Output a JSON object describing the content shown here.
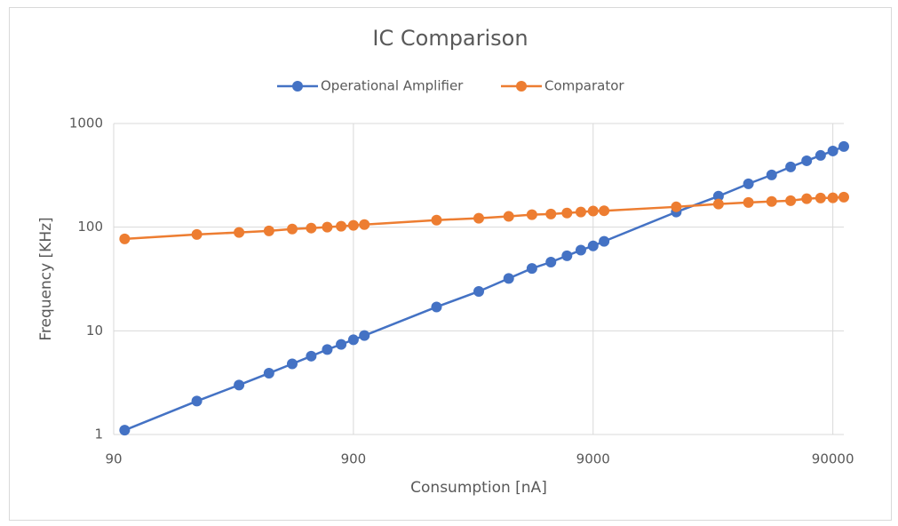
{
  "chart_data": {
    "type": "line",
    "title": "IC Comparison",
    "x_label": "Consumption [nA]",
    "y_label": "Frequency [KHz]",
    "x": [
      100,
      200,
      300,
      400,
      500,
      600,
      700,
      800,
      900,
      1000,
      2000,
      3000,
      4000,
      5000,
      6000,
      7000,
      8000,
      9000,
      10000,
      20000,
      30000,
      40000,
      50000,
      60000,
      70000,
      80000,
      90000,
      100000
    ],
    "series": [
      {
        "name": "Operational Amplifier",
        "color": "#4472c4",
        "values": [
          1.1,
          2.1,
          3.0,
          3.9,
          4.8,
          5.7,
          6.6,
          7.4,
          8.2,
          9.0,
          17,
          24,
          32,
          40,
          46,
          53,
          60,
          66,
          73,
          140,
          199,
          262,
          319,
          381,
          437,
          492,
          543,
          600
        ]
      },
      {
        "name": "Comparator",
        "color": "#ed7d31",
        "values": [
          77,
          85,
          89,
          92,
          96,
          98,
          100,
          102,
          104,
          106,
          117,
          122,
          127,
          132,
          134,
          137,
          140,
          143,
          144,
          157,
          167,
          173,
          177,
          180,
          188,
          191,
          192,
          195
        ]
      }
    ],
    "xlim": [
      90,
      100000
    ],
    "ylim": [
      1,
      1000
    ],
    "xticks": [
      90,
      900,
      9000,
      90000
    ],
    "yticks": [
      1,
      10,
      100,
      1000
    ],
    "x_log": true,
    "y_log": true,
    "grid": true,
    "legend": "top"
  }
}
